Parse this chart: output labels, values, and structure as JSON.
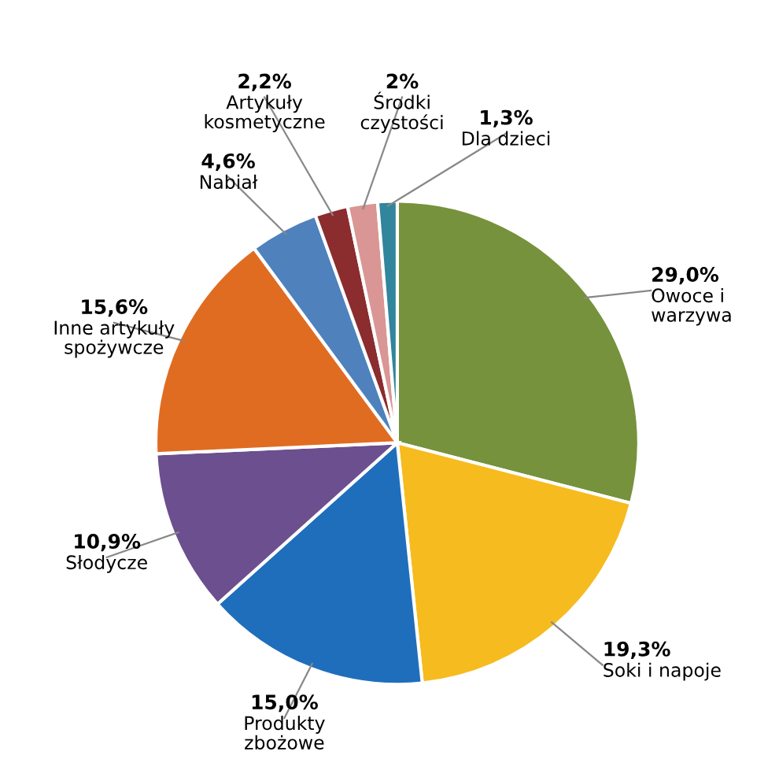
{
  "chart_data": {
    "type": "pie",
    "categories": [
      "Owoce i\nwarzywa",
      "Soki i napoje",
      "Produkty\nzbożowe",
      "Słodycze",
      "Inne artykuły\nspożywcze",
      "Nabiał",
      "Artykuły\nkosmetyczne",
      "Środki\nczystości",
      "Dla dzieci"
    ],
    "values": [
      29.0,
      19.3,
      15.0,
      10.9,
      15.6,
      4.6,
      2.2,
      2,
      1.3
    ],
    "value_labels": [
      "29,0%",
      "19,3%",
      "15,0%",
      "10,9%",
      "15,6%",
      "4,6%",
      "2,2%",
      "2%",
      "1,3%"
    ],
    "colors": [
      "#76923c",
      "#f6bb1e",
      "#1f6ebc",
      "#6c4f8e",
      "#e06c22",
      "#4f81bd",
      "#8b2c2e",
      "#d99694",
      "#31859c"
    ],
    "legend": false
  }
}
